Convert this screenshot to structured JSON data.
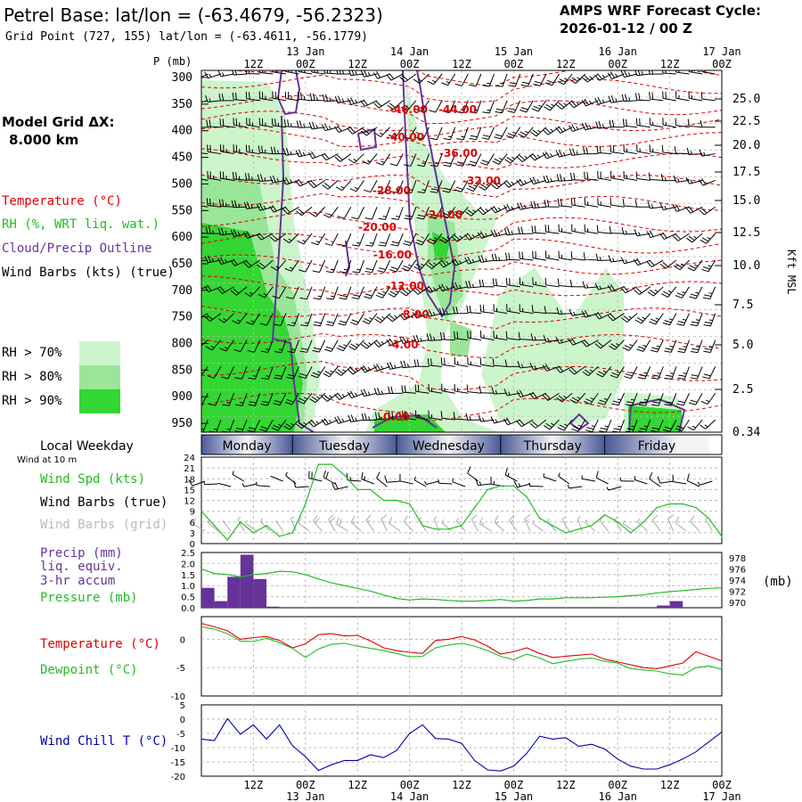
{
  "header": {
    "title": "Petrel Base:  lat/lon = (-63.4679, -56.2323)",
    "grid_point": "Grid Point (727, 155) lat/lon = (-63.4611, -56.1779)",
    "cycle_line1": "AMPS WRF Forecast Cycle:",
    "cycle_line2": "2026-01-12 / 00  Z"
  },
  "left_labels": {
    "p_axis": "P (mb)",
    "model_grid": "Model Grid ΔX:",
    "model_grid_value": "8.000 km",
    "temperature": "Temperature (°C)",
    "rh": "RH (%, WRT liq. wat.)",
    "cloud": "Cloud/Precip Outline",
    "wind_barbs": "Wind Barbs (kts) (true)",
    "rh70": "RH > 70%",
    "rh80": "RH > 80%",
    "rh90": "RH > 90%",
    "local_weekday": "Local Weekday",
    "wind_at": "Wind at 10 m",
    "wind_spd": "Wind Spd (kts)",
    "wind_barbs_true": "Wind Barbs (true)",
    "wind_barbs_grid": "Wind Barbs (grid)",
    "precip": "Precip (mm)",
    "liq": "liq. equiv.",
    "accum": "3-hr accum",
    "pressure": "Pressure (mb)",
    "temp2": "Temperature (°C)",
    "dewpoint": "Dewpoint (°C)",
    "windchill": "Wind Chill T (°C)"
  },
  "right_labels": {
    "kft": "Kft MSL",
    "mb": "(mb)"
  },
  "colors": {
    "rh70": "#ccf5cc",
    "rh80": "#99e699",
    "rh90": "#33d633",
    "temp": "#dd0000",
    "cloud": "#663399",
    "green": "#22bb22",
    "purple": "#663399",
    "blue": "#0000aa",
    "gray": "#aaaaaa",
    "day_bar": "#4a5a99"
  },
  "chart_data": [
    {
      "type": "heatmap",
      "name": "sounding",
      "x_ticks_top": [
        "12Z",
        "00Z",
        "12Z",
        "00Z",
        "12Z",
        "00Z",
        "12Z",
        "00Z",
        "12Z",
        "00Z"
      ],
      "date_ticks": [
        "13 Jan",
        "14 Jan",
        "15 Jan",
        "16 Jan",
        "17 Jan"
      ],
      "pressure_levels": [
        300,
        350,
        400,
        450,
        500,
        550,
        600,
        650,
        700,
        750,
        800,
        850,
        900,
        950
      ],
      "height_ticks": [
        "25.0",
        "22.5",
        "20.0",
        "17.5",
        "15.0",
        "12.5",
        "10.0",
        "7.5",
        "5.0",
        "2.5",
        "0.34"
      ],
      "temp_labels": [
        "-46.00",
        "-44.00",
        "-40.00",
        "-36.00",
        "-32.00",
        "-28.00",
        "-24.00",
        "-20.00",
        "-16.00",
        "-12.00",
        "-8.00",
        "-4.00",
        "-0.00"
      ]
    },
    {
      "type": "line",
      "name": "wind_speed",
      "days": [
        "Monday",
        "Tuesday",
        "Wednesday",
        "Thursday",
        "Friday"
      ],
      "y_ticks": [
        "24",
        "21",
        "18",
        "15",
        "12",
        "9",
        "6",
        "3",
        "0"
      ],
      "ylim": [
        0,
        24
      ],
      "x_hours": [
        0,
        3,
        6,
        9,
        12,
        15,
        18,
        21,
        24,
        27,
        30,
        33,
        36,
        39,
        42,
        45,
        48,
        51,
        54,
        57,
        60,
        63,
        66,
        69,
        72,
        75,
        78,
        81,
        84,
        87,
        90,
        93,
        96,
        99,
        102,
        105,
        108,
        111,
        114,
        117,
        120
      ],
      "values": [
        9,
        5,
        1,
        6,
        3,
        5,
        2,
        3,
        11,
        22,
        22,
        19,
        15,
        15,
        12,
        12,
        11,
        5,
        4,
        4,
        5,
        10,
        15,
        16,
        16,
        13,
        7,
        5,
        3,
        4,
        5,
        8,
        6,
        3,
        6,
        10,
        11,
        11,
        10,
        7,
        2
      ]
    },
    {
      "type": "bar",
      "name": "precip_pressure",
      "y_ticks_left": [
        "2.5",
        "2.0",
        "1.5",
        "1.0",
        "0.5",
        "0.0"
      ],
      "y_ticks_right": [
        "978",
        "976",
        "974",
        "972",
        "970"
      ],
      "ylim": [
        0,
        2.5
      ],
      "precip_hours": [
        0,
        3,
        6,
        9,
        12,
        15,
        105,
        108
      ],
      "precip_values": [
        0.9,
        0.3,
        1.4,
        2.4,
        1.3,
        0.05,
        0.1,
        0.3
      ],
      "pressure_hours": [
        0,
        3,
        6,
        9,
        12,
        15,
        18,
        21,
        24,
        27,
        30,
        33,
        36,
        39,
        42,
        45,
        48,
        51,
        54,
        57,
        60,
        63,
        66,
        69,
        72,
        75,
        78,
        81,
        84,
        87,
        90,
        93,
        96,
        99,
        102,
        105,
        108,
        111,
        114,
        117,
        120
      ],
      "pressure_values": [
        976.0,
        975.2,
        975.0,
        974.6,
        975.0,
        975.2,
        975.6,
        975.5,
        975.0,
        974.2,
        973.5,
        973.0,
        972.5,
        972.0,
        971.3,
        970.7,
        970.4,
        970.6,
        970.5,
        970.3,
        970.2,
        970.2,
        970.3,
        970.5,
        970.2,
        970.3,
        970.6,
        970.6,
        970.8,
        970.8,
        970.8,
        970.9,
        971.0,
        971.2,
        971.3,
        971.7,
        971.9,
        972.1,
        972.3,
        972.5,
        972.6
      ]
    },
    {
      "type": "line",
      "name": "temperature",
      "y_ticks": [
        "0",
        "-5",
        "-10"
      ],
      "ylim": [
        -10,
        4
      ],
      "x_hours": [
        0,
        3,
        6,
        9,
        12,
        15,
        18,
        21,
        24,
        27,
        30,
        33,
        36,
        39,
        42,
        45,
        48,
        51,
        54,
        57,
        60,
        63,
        66,
        69,
        72,
        75,
        78,
        81,
        84,
        87,
        90,
        93,
        96,
        99,
        102,
        105,
        108,
        111,
        114,
        117,
        120
      ],
      "series": [
        {
          "name": "Temperature (°C)",
          "values": [
            2.8,
            2.2,
            1.5,
            0.0,
            0.3,
            0.5,
            -0.2,
            -1.5,
            -0.8,
            0.8,
            1.0,
            0.6,
            0.7,
            -0.3,
            -1.5,
            -2.0,
            -2.3,
            -2.5,
            -0.2,
            0.0,
            0.5,
            -0.1,
            -1.2,
            -2.6,
            -2.2,
            -1.5,
            -2.5,
            -3.2,
            -3.0,
            -2.8,
            -2.6,
            -3.5,
            -4.0,
            -4.5,
            -5.0,
            -5.2,
            -4.7,
            -4.2,
            -2.2,
            -3.0,
            -3.8
          ]
        },
        {
          "name": "Dewpoint (°C)",
          "values": [
            2.2,
            1.8,
            1.0,
            -0.3,
            -0.4,
            0.2,
            -0.6,
            -1.6,
            -3.2,
            -1.7,
            -0.9,
            -0.7,
            -1.2,
            -1.6,
            -2.0,
            -2.5,
            -3.1,
            -3.0,
            -1.5,
            -1.0,
            -0.7,
            -1.2,
            -2.0,
            -3.0,
            -3.6,
            -2.6,
            -3.3,
            -4.3,
            -3.9,
            -3.5,
            -3.3,
            -3.9,
            -4.2,
            -5.2,
            -5.4,
            -5.6,
            -6.1,
            -6.3,
            -5.0,
            -4.7,
            -5.3
          ]
        }
      ]
    },
    {
      "type": "line",
      "name": "wind_chill",
      "y_ticks": [
        "5",
        "0",
        "-5",
        "-10",
        "-15",
        "-20"
      ],
      "ylim": [
        -20,
        5
      ],
      "x_hours": [
        0,
        3,
        6,
        9,
        12,
        15,
        18,
        21,
        24,
        27,
        30,
        33,
        36,
        39,
        42,
        45,
        48,
        51,
        54,
        57,
        60,
        63,
        66,
        69,
        72,
        75,
        78,
        81,
        84,
        87,
        90,
        93,
        96,
        99,
        102,
        105,
        108,
        111,
        114,
        117,
        120
      ],
      "values": [
        -7.0,
        -7.5,
        0.2,
        -5.3,
        -2.0,
        -7.0,
        -2.0,
        -9.3,
        -13.2,
        -18.0,
        -16.0,
        -14.5,
        -14.5,
        -12.5,
        -13.5,
        -11.0,
        -5.0,
        -2.0,
        -6.8,
        -7.0,
        -8.5,
        -14.5,
        -17.8,
        -18.2,
        -16.5,
        -12.0,
        -6.0,
        -7.0,
        -6.5,
        -9.5,
        -8.8,
        -10.5,
        -14.0,
        -16.5,
        -17.5,
        -17.5,
        -16.0,
        -14.0,
        -11.5,
        -8.0,
        -4.5
      ]
    }
  ]
}
